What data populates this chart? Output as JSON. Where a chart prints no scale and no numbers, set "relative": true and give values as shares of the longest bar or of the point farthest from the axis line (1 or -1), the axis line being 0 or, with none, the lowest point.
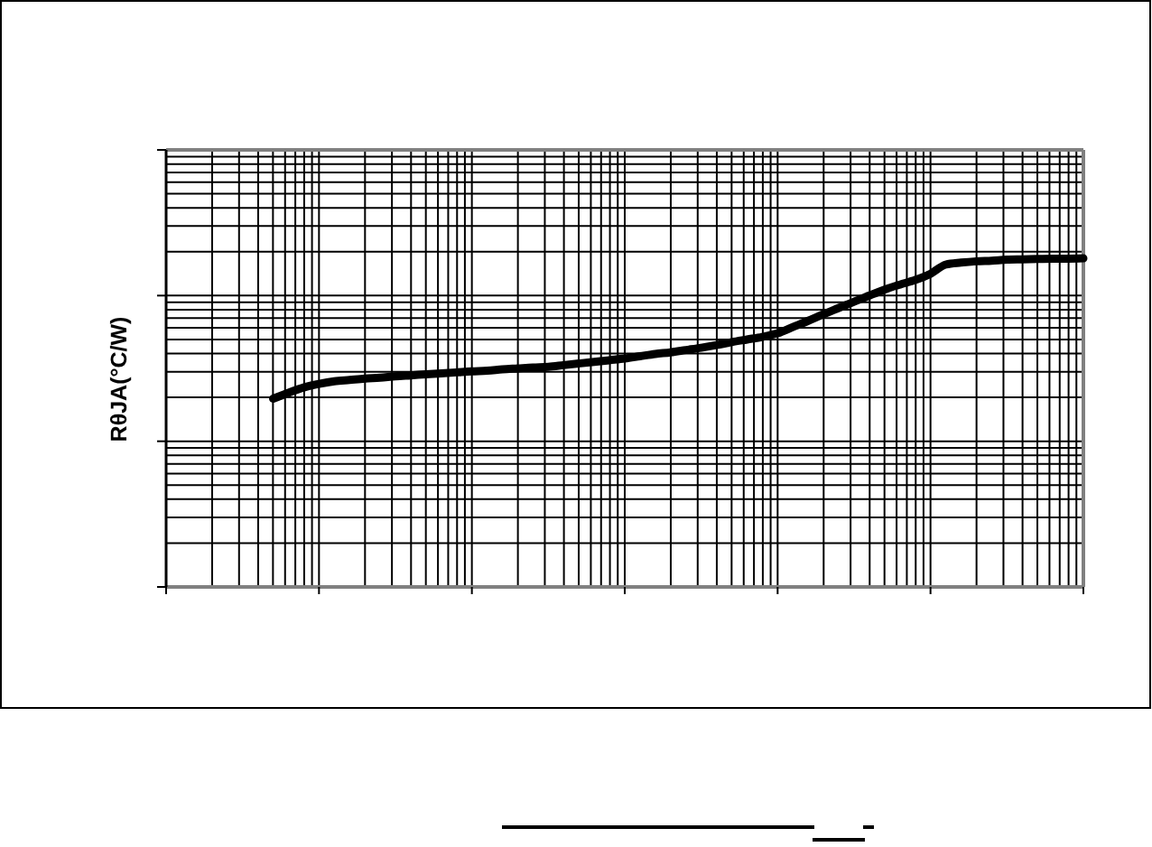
{
  "chart_data": {
    "type": "line",
    "ylabel": "RθJA(°C/W)",
    "relative": true,
    "grid": true,
    "categories": [
      null,
      null,
      null,
      null,
      null,
      null,
      null,
      null,
      null,
      null,
      null,
      null,
      null,
      null,
      null,
      null,
      null,
      null,
      null,
      null,
      null,
      null,
      null,
      null,
      null,
      null,
      null,
      null,
      null,
      null,
      null,
      null,
      null,
      null,
      null,
      null,
      null,
      null,
      null,
      null,
      null,
      null,
      null,
      null,
      null,
      null,
      null,
      null,
      null,
      null,
      null,
      null,
      null,
      null,
      null,
      null,
      null,
      null,
      null,
      null,
      null
    ],
    "series": [
      {
        "color": "#000000",
        "values": [
          null,
          null,
          null,
          null,
          null,
          null,
          null,
          0.573,
          0.591,
          0.607,
          0.618,
          0.626,
          0.63,
          0.634,
          0.637,
          0.641,
          0.644,
          0.647,
          0.65,
          0.653,
          0.656,
          0.658,
          0.662,
          0.665,
          0.668,
          0.67,
          0.675,
          0.68,
          0.685,
          0.69,
          0.695,
          0.702,
          0.709,
          0.714,
          0.721,
          0.728,
          0.736,
          0.745,
          0.753,
          0.761,
          0.772,
          0.791,
          0.81,
          0.83,
          0.849,
          0.868,
          0.887,
          0.905,
          0.92,
          0.934,
          0.953,
          0.981,
          0.987,
          0.991,
          0.993,
          0.996,
          0.997,
          0.998,
          0.999,
          0.999,
          1
        ]
      }
    ]
  }
}
